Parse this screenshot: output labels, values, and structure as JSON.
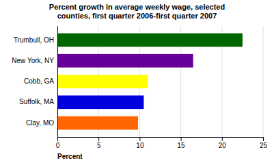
{
  "chart_data": {
    "type": "bar",
    "orientation": "horizontal",
    "title": "Percent growth in average weekly wage, selected\ncounties, first quarter 2006-first quarter 2007",
    "categories": [
      "Clay, MO",
      "Suffolk, MA",
      "Cobb, GA",
      "New York, NY",
      "Trumbull, OH"
    ],
    "values": [
      9.8,
      10.5,
      11.0,
      16.5,
      22.5
    ],
    "colors": [
      "#FF6600",
      "#0000DD",
      "#FFFF00",
      "#660099",
      "#006600"
    ],
    "xlabel": "Percent",
    "xlim": [
      0,
      25
    ],
    "xticks": [
      0,
      5,
      10,
      15,
      20,
      25
    ],
    "grid": true
  }
}
